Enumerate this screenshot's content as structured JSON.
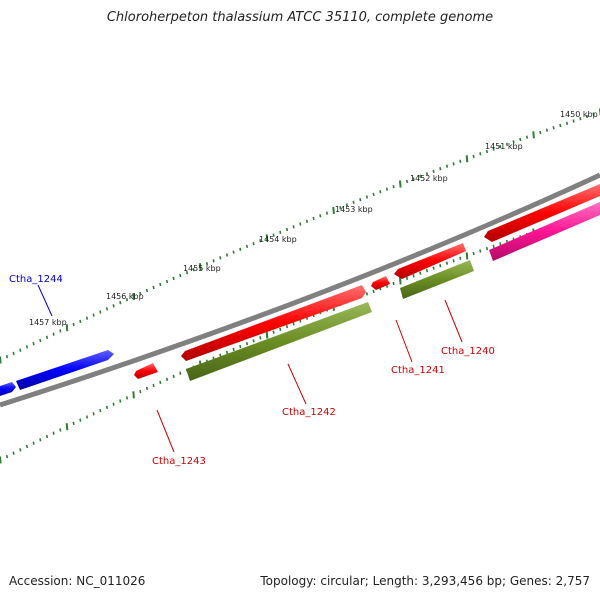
{
  "title": "Chloroherpeton thalassium ATCC 35110, complete genome",
  "footer": {
    "accession": "Accession: NC_011026",
    "topology": "Topology: circular; Length: 3,293,456 bp; Genes: 2,757"
  },
  "colors": {
    "backbone": "#808080",
    "forward_cds": "#ff0000",
    "reverse_cds": "#0000ff",
    "rna": "#6b8e23",
    "highlight": "#ff1493",
    "label_red": "#cc0000",
    "label_blue": "#0000cc",
    "tick": "#2e7d32"
  },
  "scale_labels": [
    "1450 kbp",
    "1451 kbp",
    "1452 kbp",
    "1453 kbp",
    "1454 kbp",
    "1455 kbp",
    "1456 kbp",
    "1457 kbp"
  ],
  "gene_labels": [
    "Ctha_1244",
    "Ctha_1243",
    "Ctha_1242",
    "Ctha_1241",
    "Ctha_1240"
  ]
}
